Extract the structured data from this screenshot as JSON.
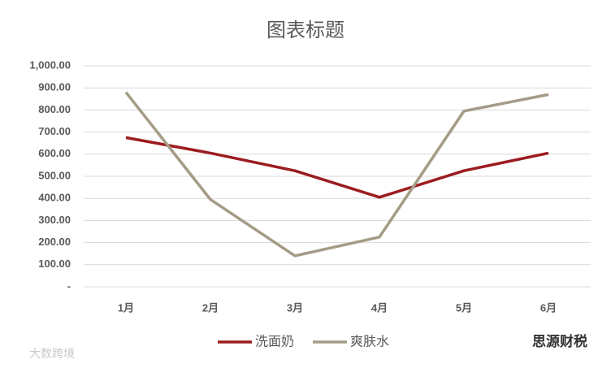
{
  "chart_data": {
    "type": "line",
    "title": "图表标题",
    "categories": [
      "1月",
      "2月",
      "3月",
      "4月",
      "5月",
      "6月"
    ],
    "series": [
      {
        "name": "洗面奶",
        "color": "#9b1c1f",
        "values": [
          675,
          605,
          525,
          405,
          525,
          605
        ]
      },
      {
        "name": "爽肤水",
        "color": "#a59c86",
        "values": [
          880,
          395,
          140,
          225,
          795,
          870
        ]
      }
    ],
    "ylim": [
      0,
      1000
    ],
    "yticks": [
      {
        "value": 0,
        "label": "-"
      },
      {
        "value": 100,
        "label": "100.00"
      },
      {
        "value": 200,
        "label": "200.00"
      },
      {
        "value": 300,
        "label": "300.00"
      },
      {
        "value": 400,
        "label": "400.00"
      },
      {
        "value": 500,
        "label": "500.00"
      },
      {
        "value": 600,
        "label": "600.00"
      },
      {
        "value": 700,
        "label": "700.00"
      },
      {
        "value": 800,
        "label": "800.00"
      },
      {
        "value": 900,
        "label": "900.00"
      },
      {
        "value": 1000,
        "label": "1,000.00"
      }
    ],
    "grid": true,
    "legend": "bottom"
  },
  "watermarks": [
    "大数跨境",
    "思源财税"
  ]
}
